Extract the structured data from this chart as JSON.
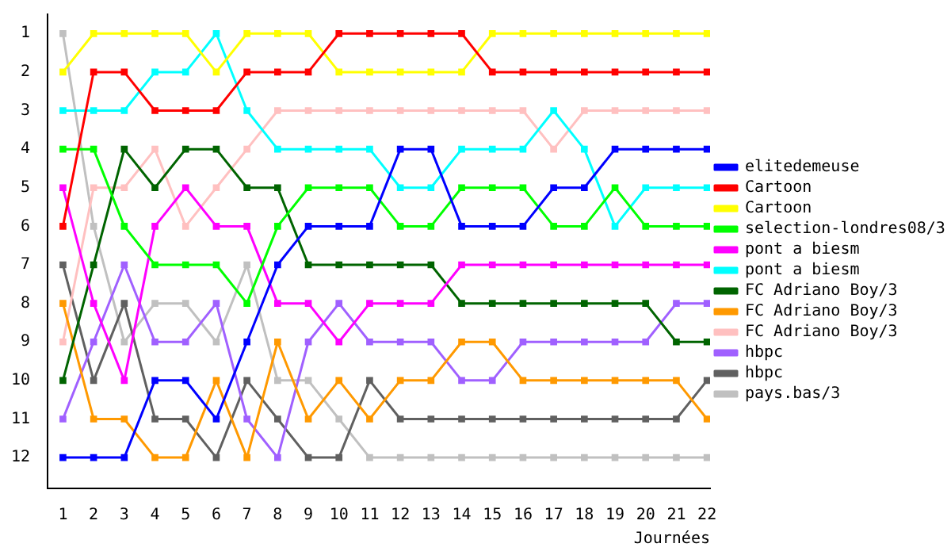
{
  "chart_data": {
    "type": "line",
    "xlabel": "Journées",
    "x": [
      1,
      2,
      3,
      4,
      5,
      6,
      7,
      8,
      9,
      10,
      11,
      12,
      13,
      14,
      15,
      16,
      17,
      18,
      19,
      20,
      21,
      22
    ],
    "series": [
      {
        "name": "elitedemeuse",
        "color": "#0000ff",
        "values": [
          12,
          12,
          12,
          10,
          10,
          11,
          9,
          7,
          6,
          6,
          6,
          4,
          4,
          6,
          6,
          6,
          5,
          5,
          4,
          4,
          4,
          4
        ]
      },
      {
        "name": "Cartoon",
        "color": "#ff0000",
        "values": [
          6,
          2,
          2,
          3,
          3,
          3,
          2,
          2,
          2,
          1,
          1,
          1,
          1,
          1,
          2,
          2,
          2,
          2,
          2,
          2,
          2,
          2
        ]
      },
      {
        "name": "Cartoon",
        "color": "#ffff00",
        "values": [
          2,
          1,
          1,
          1,
          1,
          2,
          1,
          1,
          1,
          2,
          2,
          2,
          2,
          2,
          1,
          1,
          1,
          1,
          1,
          1,
          1,
          1
        ]
      },
      {
        "name": "selection-londres08/3",
        "color": "#00ff00",
        "values": [
          4,
          4,
          6,
          7,
          7,
          7,
          8,
          6,
          5,
          5,
          5,
          6,
          6,
          5,
          5,
          5,
          6,
          6,
          5,
          6,
          6,
          6
        ]
      },
      {
        "name": "pont a biesm",
        "color": "#ff00ff",
        "values": [
          5,
          8,
          10,
          6,
          5,
          6,
          6,
          8,
          8,
          9,
          8,
          8,
          8,
          7,
          7,
          7,
          7,
          7,
          7,
          7,
          7,
          7
        ]
      },
      {
        "name": "pont a biesm",
        "color": "#00ffff",
        "values": [
          3,
          3,
          3,
          2,
          2,
          1,
          3,
          4,
          4,
          4,
          4,
          5,
          5,
          4,
          4,
          4,
          3,
          4,
          6,
          5,
          5,
          5
        ]
      },
      {
        "name": "FC Adriano Boy/3",
        "color": "#006400",
        "values": [
          10,
          7,
          4,
          5,
          4,
          4,
          5,
          5,
          7,
          7,
          7,
          7,
          7,
          8,
          8,
          8,
          8,
          8,
          8,
          8,
          9,
          9
        ]
      },
      {
        "name": "FC Adriano Boy/3",
        "color": "#ff9900",
        "values": [
          8,
          11,
          11,
          12,
          12,
          10,
          12,
          9,
          11,
          10,
          11,
          10,
          10,
          9,
          9,
          10,
          10,
          10,
          10,
          10,
          10,
          11
        ]
      },
      {
        "name": "FC Adriano Boy/3",
        "color": "#ffc0c0",
        "values": [
          9,
          5,
          5,
          4,
          6,
          5,
          4,
          3,
          3,
          3,
          3,
          3,
          3,
          3,
          3,
          3,
          4,
          3,
          3,
          3,
          3,
          3
        ]
      },
      {
        "name": "hbpc",
        "color": "#a060ff",
        "values": [
          11,
          9,
          7,
          9,
          9,
          8,
          11,
          12,
          9,
          8,
          9,
          9,
          9,
          10,
          10,
          9,
          9,
          9,
          9,
          9,
          8,
          8
        ]
      },
      {
        "name": "hbpc",
        "color": "#606060",
        "values": [
          7,
          10,
          8,
          11,
          11,
          12,
          10,
          11,
          12,
          12,
          10,
          11,
          11,
          11,
          11,
          11,
          11,
          11,
          11,
          11,
          11,
          10
        ]
      },
      {
        "name": "pays.bas/3",
        "color": "#c0c0c0",
        "values": [
          1,
          6,
          9,
          8,
          8,
          9,
          7,
          10,
          10,
          11,
          12,
          12,
          12,
          12,
          12,
          12,
          12,
          12,
          12,
          12,
          12,
          12
        ]
      }
    ],
    "xlim": [
      0.5,
      22.1
    ],
    "xticks": [
      1,
      2,
      3,
      4,
      5,
      6,
      7,
      8,
      9,
      10,
      11,
      12,
      13,
      14,
      15,
      16,
      17,
      18,
      19,
      20,
      21,
      22
    ],
    "ylim": [
      12.8,
      0.5
    ],
    "yticks": [
      1,
      2,
      3,
      4,
      5,
      6,
      7,
      8,
      9,
      10,
      11,
      12
    ],
    "legend": "right",
    "marker": "square",
    "grid": false
  }
}
